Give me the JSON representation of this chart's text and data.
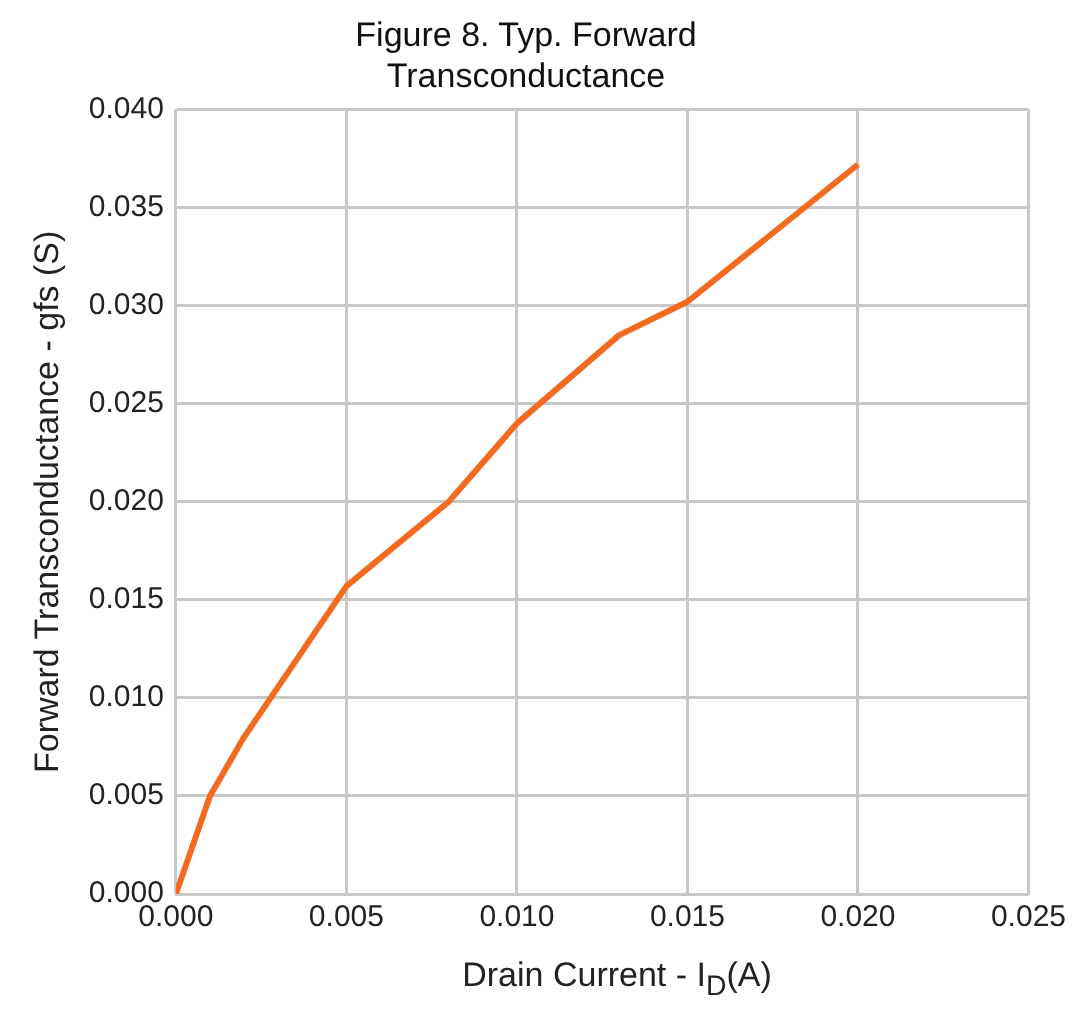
{
  "chart_data": {
    "type": "line",
    "title": "Figure 8. Typ. Forward Transconductance",
    "xlabel": "Drain Current - I$_{D}$(A)",
    "ylabel": "Forward Transconductance - gfs (S)",
    "x": [
      0,
      0.001,
      0.002,
      0.005,
      0.008,
      0.01,
      0.013,
      0.015,
      0.02
    ],
    "series": [
      {
        "color": "#f26b21",
        "values": [
          0,
          0.005,
          0.008,
          0.0157,
          0.02,
          0.024,
          0.0285,
          0.0302,
          0.0372
        ]
      }
    ],
    "xlim": [
      0,
      0.025
    ],
    "xticks": [
      {
        "value": 0,
        "label": "0.000"
      },
      {
        "value": 0.005,
        "label": "0.005"
      },
      {
        "value": 0.01,
        "label": "0.010"
      },
      {
        "value": 0.015,
        "label": "0.015"
      },
      {
        "value": 0.02,
        "label": "0.020"
      },
      {
        "value": 0.025,
        "label": "0.025"
      }
    ],
    "ylim": [
      0,
      0.04
    ],
    "yticks": [
      {
        "value": 0,
        "label": "0.000"
      },
      {
        "value": 0.005,
        "label": "0.005"
      },
      {
        "value": 0.01,
        "label": "0.010"
      },
      {
        "value": 0.015,
        "label": "0.015"
      },
      {
        "value": 0.02,
        "label": "0.020"
      },
      {
        "value": 0.025,
        "label": "0.025"
      },
      {
        "value": 0.03,
        "label": "0.030"
      },
      {
        "value": 0.035,
        "label": "0.035"
      },
      {
        "value": 0.04,
        "label": "0.040"
      }
    ],
    "grid": true,
    "legend": false,
    "marker": "none",
    "line_style": "solid"
  }
}
